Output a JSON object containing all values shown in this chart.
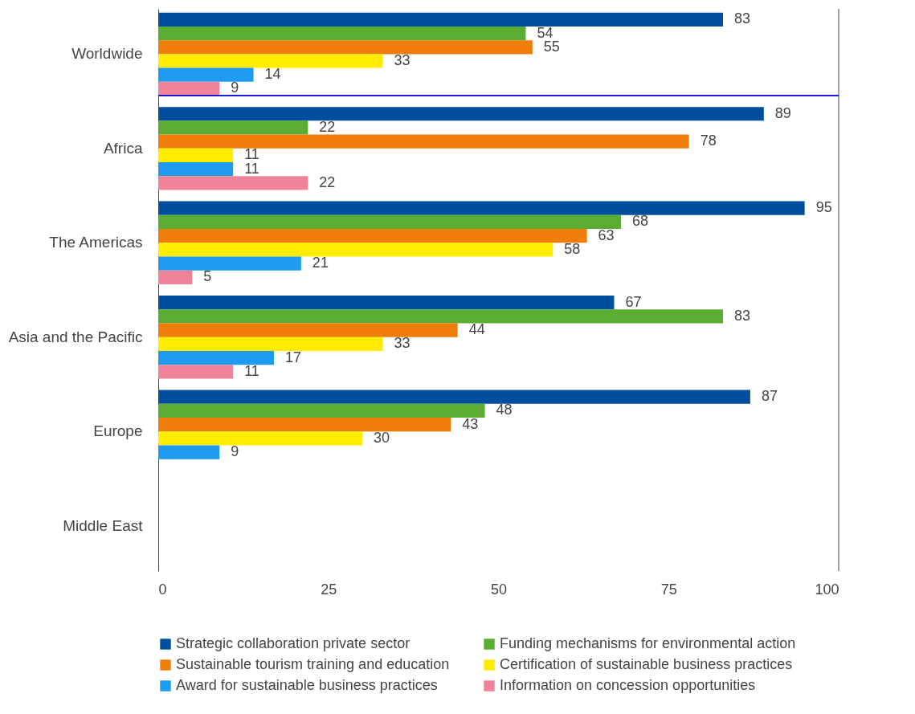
{
  "chart_data": {
    "type": "bar",
    "orientation": "horizontal",
    "categories": [
      "Worldwide",
      "Africa",
      "The Americas",
      "Asia and the Pacific",
      "Europe",
      "Middle East"
    ],
    "series": [
      {
        "name": "Strategic collaboration private sector",
        "color": "#004f9f",
        "values": [
          83,
          89,
          95,
          67,
          87,
          null
        ]
      },
      {
        "name": "Funding mechanisms for environmental action",
        "color": "#5aac32",
        "values": [
          54,
          22,
          68,
          83,
          48,
          null
        ]
      },
      {
        "name": "Sustainable tourism training and education",
        "color": "#ef7d0a",
        "values": [
          55,
          78,
          63,
          44,
          43,
          null
        ]
      },
      {
        "name": "Certification of sustainable business practices",
        "color": "#ffec00",
        "values": [
          33,
          11,
          58,
          33,
          30,
          null
        ]
      },
      {
        "name": "Award for sustainable business practices",
        "color": "#1e9bef",
        "values": [
          14,
          11,
          21,
          17,
          9,
          null
        ]
      },
      {
        "name": "Information on concession opportunities",
        "color": "#f08399",
        "values": [
          9,
          22,
          5,
          11,
          null,
          null
        ]
      }
    ],
    "xlim": [
      0,
      100
    ],
    "xticks": [
      0,
      25,
      50,
      75,
      100
    ],
    "grid": false,
    "legend": "bottom",
    "data_labels": true,
    "ref_lines": [
      {
        "axis": "y",
        "value": "Worldwide",
        "color": "#1a1adb"
      }
    ]
  }
}
